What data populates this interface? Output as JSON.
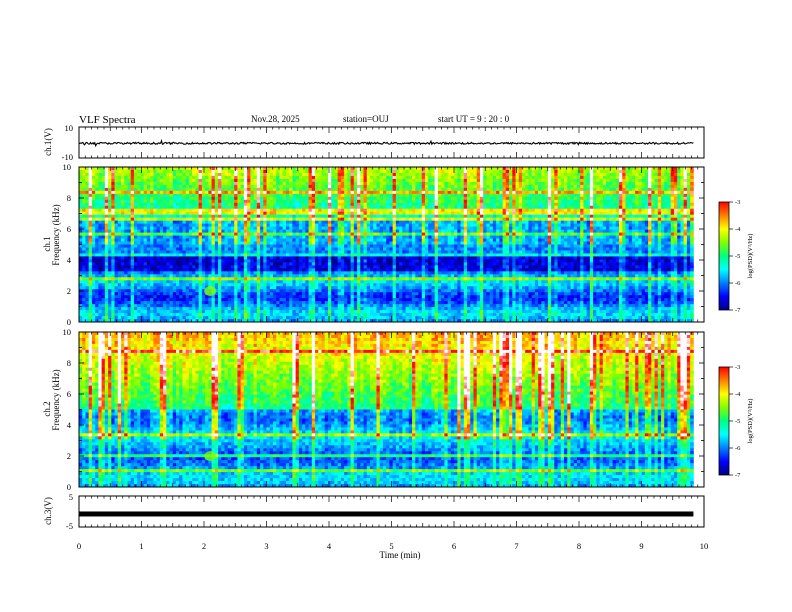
{
  "header": {
    "title": "VLF Spectra",
    "date": "Nov.28, 2025",
    "station": "station=OUJ",
    "start_time": "start UT =  9 : 20 : 0"
  },
  "chart_data": [
    {
      "type": "line",
      "title": "VLF Spectra",
      "ylabel": "ch.1(V)",
      "ylim": [
        -10,
        10
      ],
      "yticks": [
        "10",
        "-10"
      ],
      "xlim": [
        0,
        10
      ],
      "series": [
        {
          "name": "ch.1 waveform",
          "level": -0.5,
          "noise": 0.6,
          "x_end": 9.83
        }
      ]
    },
    {
      "type": "heatmap",
      "ylabel_line1": "ch.1",
      "ylabel_line2": "Frequency (kHz)",
      "ylim": [
        0,
        10
      ],
      "yticks": [
        "0",
        "2",
        "4",
        "6",
        "8",
        "10"
      ],
      "xlim": [
        0,
        10
      ],
      "x_end": 9.83,
      "colorbar": {
        "label": "log(PSD)(V²/Hz)",
        "range": [
          -7,
          -3
        ],
        "ticks": [
          "-3",
          "-4",
          "-5",
          "-6",
          "-7"
        ]
      }
    },
    {
      "type": "heatmap",
      "ylabel_line1": "ch.2",
      "ylabel_line2": "Frequency (kHz)",
      "ylim": [
        0,
        10
      ],
      "yticks": [
        "0",
        "2",
        "4",
        "6",
        "8",
        "10"
      ],
      "xlim": [
        0,
        10
      ],
      "x_end": 9.83,
      "colorbar": {
        "label": "log(PSD)(V²/Hz)",
        "range": [
          -7,
          -3
        ],
        "ticks": [
          "-3",
          "-4",
          "-5",
          "-6",
          "-7"
        ]
      }
    },
    {
      "type": "line",
      "ylabel": "ch.3(V)",
      "ylim": [
        -5,
        5
      ],
      "yticks": [
        "5",
        "-5"
      ],
      "xlim": [
        0,
        10
      ],
      "xlabel": "Time (min)",
      "xticks": [
        "0",
        "1",
        "2",
        "3",
        "4",
        "5",
        "6",
        "7",
        "8",
        "9",
        "10"
      ],
      "series": [
        {
          "name": "ch.3 waveform",
          "level": -0.8,
          "noise": 0.2,
          "x_end": 9.83
        }
      ]
    }
  ],
  "colors": {
    "colormap": [
      "#000080",
      "#0000ff",
      "#0080ff",
      "#00ffff",
      "#00ff80",
      "#80ff00",
      "#ffff00",
      "#ff8000",
      "#ff0000",
      "#ffffff"
    ],
    "trace": "#000000"
  }
}
